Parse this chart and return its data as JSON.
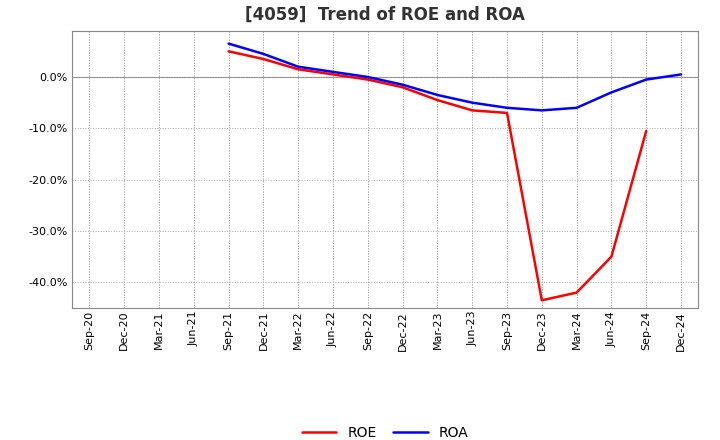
{
  "title": "[4059]  Trend of ROE and ROA",
  "background_color": "#ffffff",
  "plot_bg_color": "#ffffff",
  "grid_color": "#aaaaaa",
  "x_labels": [
    "Sep-20",
    "Dec-20",
    "Mar-21",
    "Jun-21",
    "Sep-21",
    "Dec-21",
    "Mar-22",
    "Jun-22",
    "Sep-22",
    "Dec-22",
    "Mar-23",
    "Jun-23",
    "Sep-23",
    "Dec-23",
    "Mar-24",
    "Jun-24",
    "Sep-24",
    "Dec-24"
  ],
  "roe_values": [
    null,
    null,
    null,
    null,
    5.0,
    3.5,
    1.5,
    0.5,
    -0.5,
    -2.0,
    -4.5,
    -6.5,
    -7.0,
    -43.5,
    -42.0,
    -35.0,
    -10.5,
    null
  ],
  "roa_values": [
    null,
    null,
    null,
    null,
    6.5,
    4.5,
    2.0,
    1.0,
    0.0,
    -1.5,
    -3.5,
    -5.0,
    -6.0,
    -6.5,
    -6.0,
    -3.0,
    -0.5,
    0.5
  ],
  "roe_color": "#ff0000",
  "roa_color": "#0000ff",
  "ylim": [
    -45,
    9
  ],
  "yticks": [
    0.0,
    -10.0,
    -20.0,
    -30.0,
    -40.0
  ],
  "title_fontsize": 12,
  "legend_fontsize": 10,
  "tick_fontsize": 8,
  "linewidth": 1.8
}
